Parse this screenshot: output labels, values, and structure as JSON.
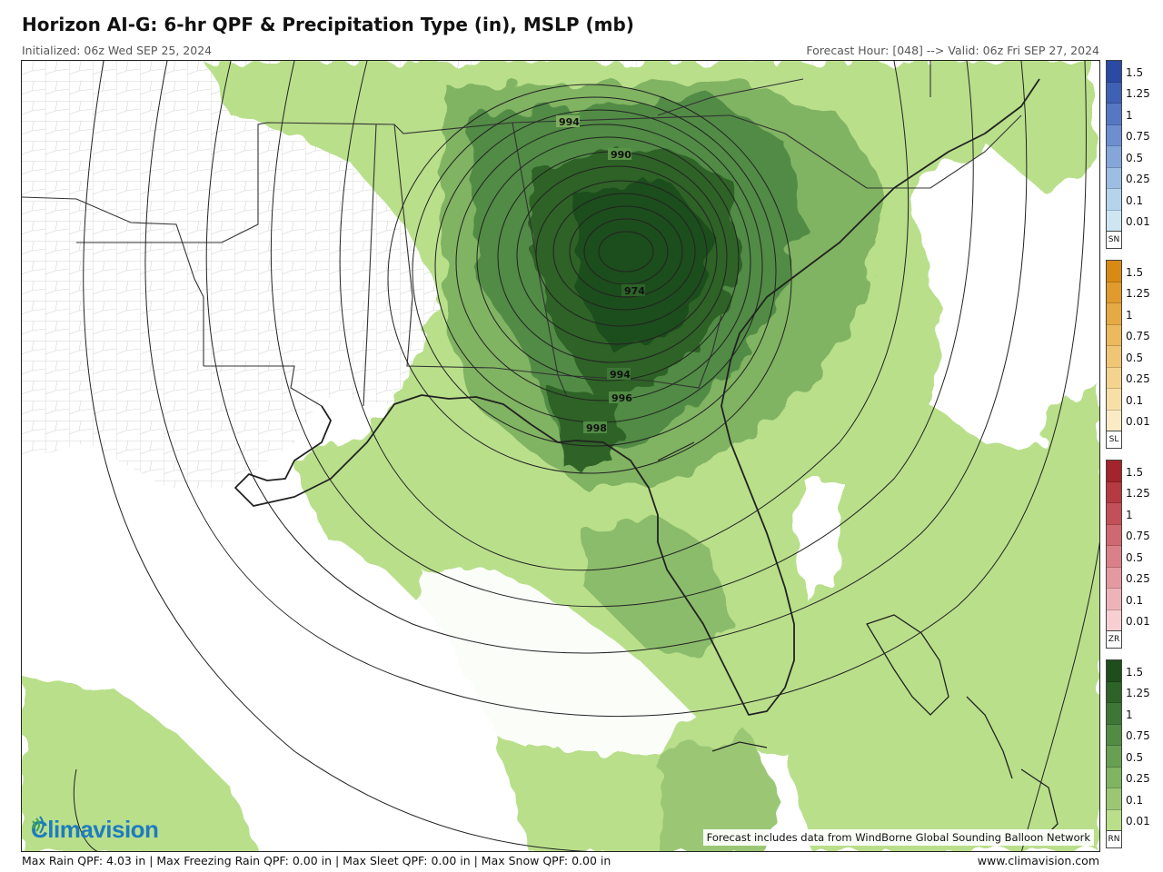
{
  "header": {
    "title": "Horizon AI-G: 6-hr QPF & Precipitation Type (in), MSLP (mb)",
    "initialized": "Initialized: 06z Wed SEP 25, 2024",
    "valid": "Forecast Hour: [048] --> Valid: 06z Fri SEP 27, 2024"
  },
  "map": {
    "isobar_labels": [
      "994",
      "990",
      "974",
      "994",
      "996",
      "998"
    ],
    "credit": "Forecast includes data from WindBorne Global Sounding Balloon Network",
    "logo_text": "Climavision",
    "logo_icon": "signal-waves-icon"
  },
  "legend": {
    "tick_labels": [
      "1.5",
      "1.25",
      "1",
      "0.75",
      "0.5",
      "0.25",
      "0.1",
      "0.01"
    ],
    "scales": [
      {
        "tag": "SN",
        "colors": [
          "#2b4aa3",
          "#3f61b4",
          "#5678c2",
          "#6d8fcf",
          "#86a6da",
          "#9dbde3",
          "#b5d4ec",
          "#cde6f2"
        ]
      },
      {
        "tag": "SL",
        "colors": [
          "#d88a14",
          "#e09b2c",
          "#e6aa45",
          "#ecb95e",
          "#f0c676",
          "#f4d38f",
          "#f7dfa8",
          "#fbebc4"
        ]
      },
      {
        "tag": "ZR",
        "colors": [
          "#a3242a",
          "#b53a41",
          "#c35058",
          "#cf6870",
          "#da8088",
          "#e499a0",
          "#eeb3b8",
          "#f7cfd2"
        ]
      },
      {
        "tag": "RN",
        "colors": [
          "#1f4d1c",
          "#2d6228",
          "#3e7636",
          "#518b44",
          "#689f52",
          "#80b362",
          "#9bc775",
          "#b9df8b"
        ]
      }
    ]
  },
  "footer": {
    "max_values": "Max Rain QPF: 4.03 in  |  Max Freezing Rain QPF: 0.00 in  |  Max Sleet QPF: 0.00 in  |  Max Snow QPF: 0.00 in",
    "website": "www.climavision.com"
  }
}
